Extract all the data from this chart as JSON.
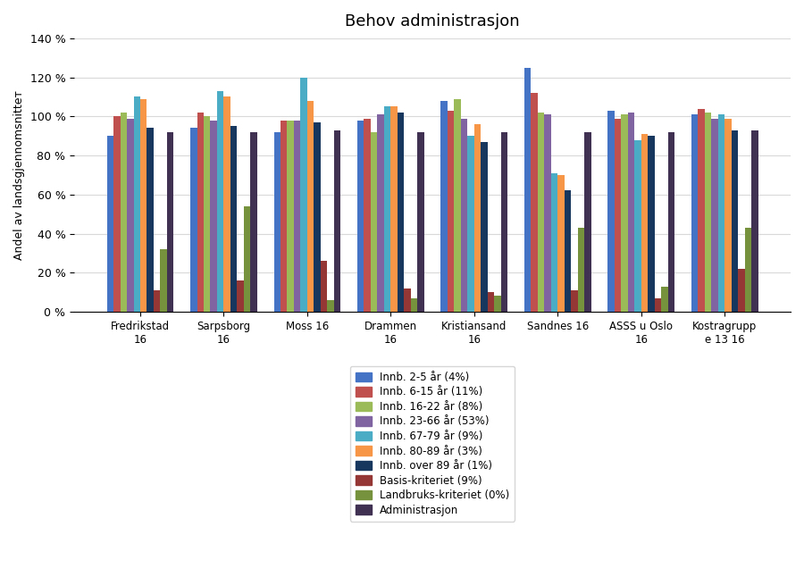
{
  "title": "Behov administrasjon",
  "ylabel": "Andel av landsgjennomsnittет",
  "categories": [
    "Fredrikstad\n16",
    "Sarpsborg\n16",
    "Moss 16",
    "Drammen\n16",
    "Kristiansand\n16",
    "Sandnes 16",
    "ASSS u Oslo\n16",
    "Kostragrupp\ne 13 16"
  ],
  "series": [
    {
      "label": "Innb. 2-5 år (4%)",
      "color": "#4472C4",
      "values": [
        0.9,
        0.94,
        0.92,
        0.98,
        1.08,
        1.25,
        1.03,
        1.01
      ]
    },
    {
      "label": "Innb. 6-15 år (11%)",
      "color": "#C0504D",
      "values": [
        1.0,
        1.02,
        0.98,
        0.99,
        1.03,
        1.12,
        0.99,
        1.04
      ]
    },
    {
      "label": "Innb. 16-22 år (8%)",
      "color": "#9BBB59",
      "values": [
        1.02,
        1.0,
        0.98,
        0.92,
        1.09,
        1.02,
        1.01,
        1.02
      ]
    },
    {
      "label": "Innb. 23-66 år (53%)",
      "color": "#8064A2",
      "values": [
        0.99,
        0.98,
        0.98,
        1.01,
        0.99,
        1.01,
        1.02,
        0.99
      ]
    },
    {
      "label": "Innb. 67-79 år (9%)",
      "color": "#4BACC6",
      "values": [
        1.1,
        1.13,
        1.2,
        1.05,
        0.9,
        0.71,
        0.88,
        1.01
      ]
    },
    {
      "label": "Innb. 80-89 år (3%)",
      "color": "#F79646",
      "values": [
        1.09,
        1.1,
        1.08,
        1.05,
        0.96,
        0.7,
        0.91,
        0.99
      ]
    },
    {
      "label": "Innb. over 89 år (1%)",
      "color": "#17375E",
      "values": [
        0.94,
        0.95,
        0.97,
        1.02,
        0.87,
        0.62,
        0.9,
        0.93
      ]
    },
    {
      "label": "Basis-kriteriet (9%)",
      "color": "#953735",
      "values": [
        0.11,
        0.16,
        0.26,
        0.12,
        0.1,
        0.11,
        0.07,
        0.22
      ]
    },
    {
      "label": "Landbruks-kriteriet (0%)",
      "color": "#76923C",
      "values": [
        0.32,
        0.54,
        0.06,
        0.07,
        0.08,
        0.43,
        0.13,
        0.43
      ]
    },
    {
      "label": "Administrasjon",
      "color": "#403152",
      "values": [
        0.92,
        0.92,
        0.93,
        0.92,
        0.92,
        0.92,
        0.92,
        0.93
      ]
    }
  ],
  "ylim": [
    0,
    1.4
  ],
  "yticks": [
    0,
    0.2,
    0.4,
    0.6,
    0.8,
    1.0,
    1.2,
    1.4
  ],
  "ytick_labels": [
    "0 %",
    "20 %",
    "40 %",
    "60 %",
    "80 %",
    "100 %",
    "120 %",
    "140 %"
  ],
  "background_color": "#FFFFFF",
  "grid_color": "#D9D9D9"
}
